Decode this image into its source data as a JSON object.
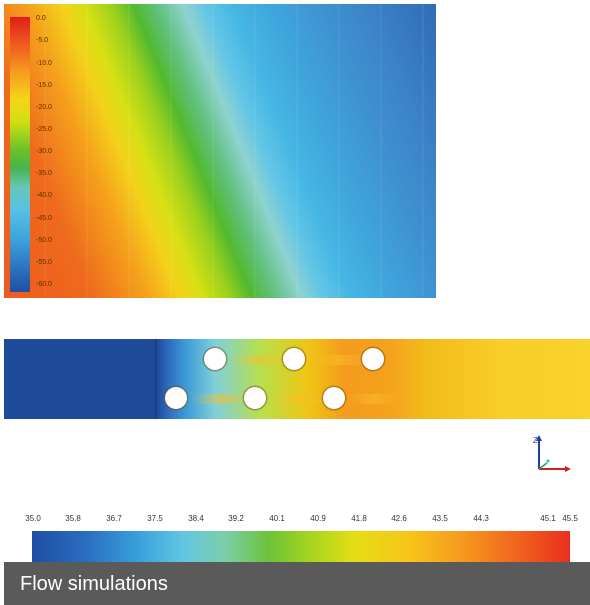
{
  "top_panel": {
    "colorbar_ticks": [
      "0.0",
      "-5.0",
      "-10.0",
      "-15.0",
      "-20.0",
      "-25.0",
      "-30.0",
      "-35.0",
      "-40.0",
      "-45.0",
      "-50.0",
      "-55.0",
      "-60.0"
    ]
  },
  "middle_panel": {
    "axis_label": "Z"
  },
  "scale": {
    "labels": [
      "35.0",
      "35.8",
      "36.7",
      "37.5",
      "38.4",
      "39.2",
      "40.1",
      "40.9",
      "41.8",
      "42.6",
      "43.5",
      "44.3",
      "45.1",
      "45.5"
    ]
  },
  "caption": "Flow simulations"
}
